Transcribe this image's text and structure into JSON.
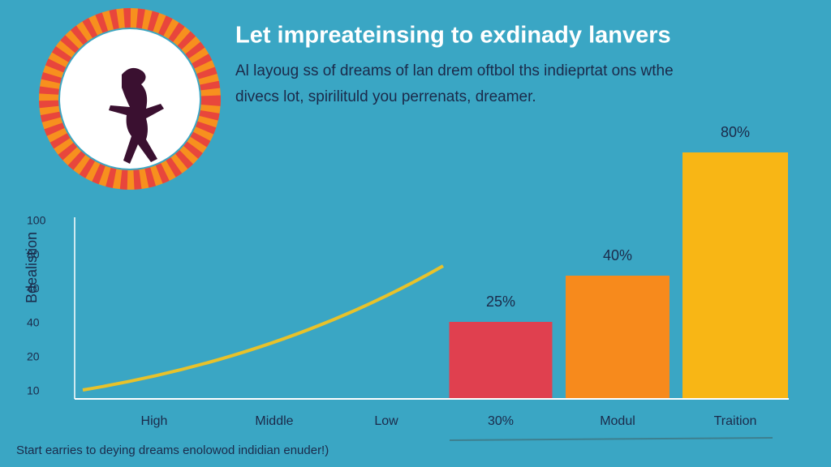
{
  "chart_data": {
    "type": "bar",
    "title": "Let impreateinsing to exdinady lanvers",
    "subtitle": [
      "Al layoug ss of dreams of lan drem oftbol ths indieprtat ons wthe",
      "divecs lot, spirilituld you perrenats, dreamer."
    ],
    "y_label": "Bdealistion",
    "y_axis_labels": [
      "100",
      "80",
      "40",
      "40",
      "20",
      "10"
    ],
    "categories": [
      "High",
      "Middle",
      "Low",
      "30%",
      "Modul",
      "Traition"
    ],
    "values": [
      null,
      null,
      null,
      25,
      40,
      80
    ],
    "value_labels": [
      null,
      null,
      null,
      "25%",
      "40%",
      "80%"
    ],
    "colors": [
      null,
      null,
      null,
      "#e0404f",
      "#f78a1c",
      "#f8b615"
    ],
    "ylim": [
      0,
      100
    ],
    "footer": "Start earries to deying dreams enolowod indidian enuder!)"
  }
}
